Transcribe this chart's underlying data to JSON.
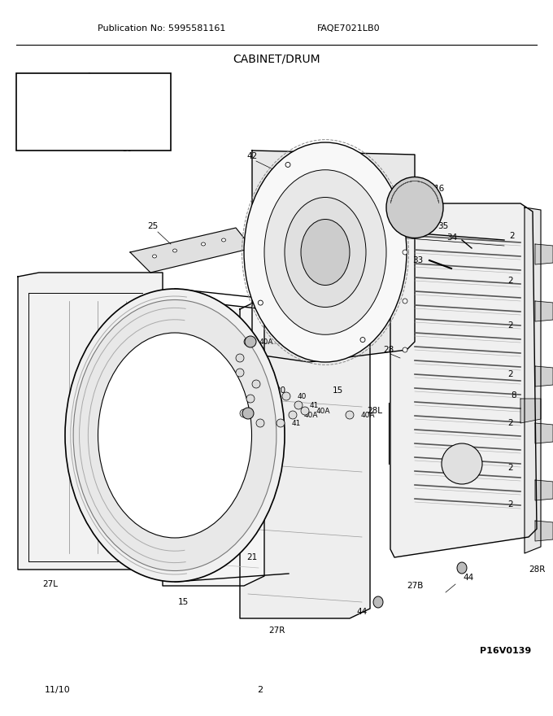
{
  "title": "CABINET/DRUM",
  "pub_no": "Publication No: 5995581161",
  "model": "FAQE7021LB0",
  "date": "11/10",
  "page": "2",
  "diagram_id": "P16V0139",
  "bg_color": "#ffffff",
  "line_color": "#000000",
  "text_color": "#000000",
  "title_fontsize": 10,
  "label_fontsize": 7.5,
  "header_fontsize": 8
}
